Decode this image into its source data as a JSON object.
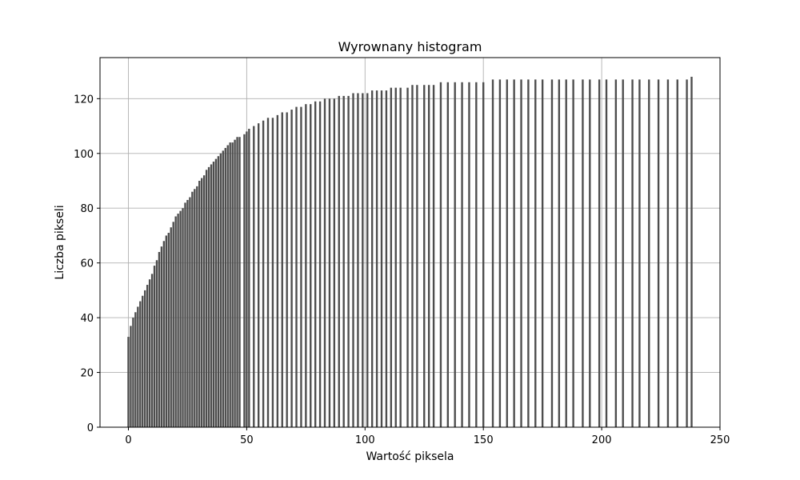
{
  "chart_data": {
    "type": "bar",
    "title": "Wyrownany histogram",
    "xlabel": "Wartość piksela",
    "ylabel": "Liczba pikseli",
    "xlim": [
      -12,
      250
    ],
    "ylim": [
      0,
      135
    ],
    "xticks": [
      0,
      50,
      100,
      150,
      200,
      250
    ],
    "yticks": [
      0,
      20,
      40,
      60,
      80,
      100,
      120
    ],
    "grid": true,
    "bar_color": "#4d4d4d",
    "x": [
      0,
      1,
      2,
      3,
      4,
      5,
      6,
      7,
      8,
      9,
      10,
      11,
      12,
      13,
      14,
      15,
      16,
      17,
      18,
      19,
      20,
      21,
      22,
      23,
      24,
      25,
      26,
      27,
      28,
      29,
      30,
      31,
      32,
      33,
      34,
      35,
      36,
      37,
      38,
      39,
      40,
      41,
      42,
      43,
      44,
      45,
      46,
      47,
      49,
      50,
      51,
      53,
      55,
      57,
      59,
      61,
      63,
      65,
      67,
      69,
      71,
      73,
      75,
      77,
      79,
      81,
      83,
      85,
      87,
      89,
      91,
      93,
      95,
      97,
      99,
      101,
      103,
      105,
      107,
      109,
      111,
      113,
      115,
      118,
      120,
      122,
      125,
      127,
      129,
      132,
      135,
      138,
      141,
      144,
      147,
      150,
      154,
      157,
      160,
      163,
      166,
      169,
      172,
      175,
      179,
      182,
      185,
      188,
      192,
      195,
      199,
      202,
      206,
      209,
      213,
      216,
      220,
      224,
      228,
      232,
      236,
      238
    ],
    "values": [
      33,
      37,
      40,
      42,
      44,
      46,
      48,
      50,
      52,
      54,
      56,
      59,
      61,
      64,
      66,
      68,
      70,
      71,
      73,
      75,
      77,
      78,
      79,
      80,
      82,
      83,
      84,
      86,
      87,
      88,
      90,
      91,
      92,
      94,
      95,
      96,
      97,
      98,
      99,
      100,
      101,
      102,
      103,
      104,
      104,
      105,
      106,
      106,
      107,
      108,
      109,
      110,
      111,
      112,
      113,
      113,
      114,
      115,
      115,
      116,
      117,
      117,
      118,
      118,
      119,
      119,
      120,
      120,
      120,
      121,
      121,
      121,
      122,
      122,
      122,
      122,
      123,
      123,
      123,
      123,
      124,
      124,
      124,
      124,
      125,
      125,
      125,
      125,
      125,
      126,
      126,
      126,
      126,
      126,
      126,
      126,
      127,
      127,
      127,
      127,
      127,
      127,
      127,
      127,
      127,
      127,
      127,
      127,
      127,
      127,
      127,
      127,
      127,
      127,
      127,
      127,
      127,
      127,
      127,
      127,
      127,
      128
    ]
  }
}
